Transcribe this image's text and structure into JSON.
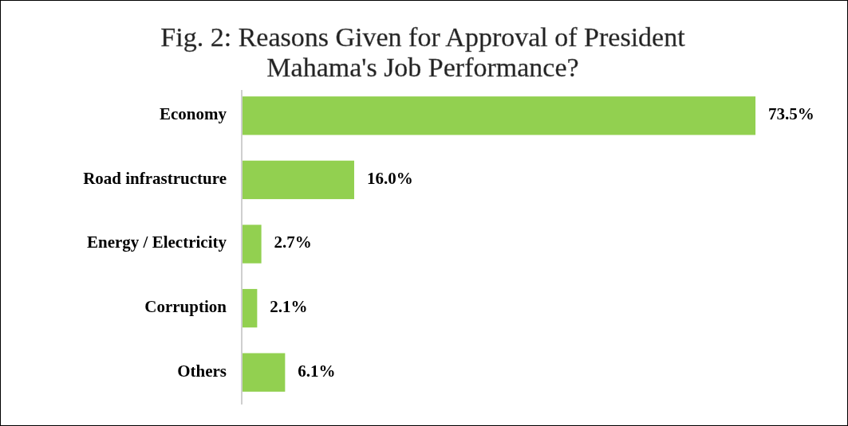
{
  "chart_data": {
    "type": "bar",
    "orientation": "horizontal",
    "title": "Fig. 2: Reasons Given for Approval of President Mahama's Job Performance?",
    "categories": [
      "Economy",
      "Road infrastructure",
      "Energy / Electricity",
      "Corruption",
      "Others"
    ],
    "values": [
      73.5,
      16.0,
      2.7,
      2.1,
      6.1
    ],
    "value_labels": [
      "73.5%",
      "16.0%",
      "2.7%",
      "2.1%",
      "6.1%"
    ],
    "color": "#92d050"
  }
}
